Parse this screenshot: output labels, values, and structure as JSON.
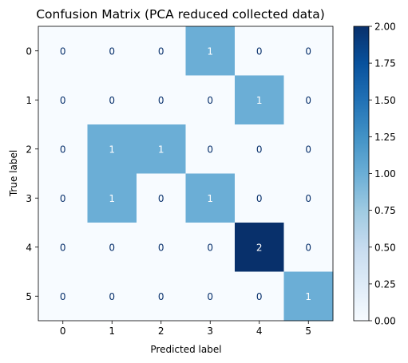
{
  "chart_data": {
    "type": "heatmap",
    "title": "Confusion Matrix (PCA reduced collected data)",
    "xlabel": "Predicted label",
    "ylabel": "True label",
    "x_categories": [
      "0",
      "1",
      "2",
      "3",
      "4",
      "5"
    ],
    "y_categories": [
      "0",
      "1",
      "2",
      "3",
      "4",
      "5"
    ],
    "matrix": [
      [
        0,
        0,
        0,
        1,
        0,
        0
      ],
      [
        0,
        0,
        0,
        0,
        1,
        0
      ],
      [
        0,
        1,
        1,
        0,
        0,
        0
      ],
      [
        0,
        1,
        0,
        1,
        0,
        0
      ],
      [
        0,
        0,
        0,
        0,
        2,
        0
      ],
      [
        0,
        0,
        0,
        0,
        0,
        1
      ]
    ],
    "colorbar": {
      "range": [
        0,
        2
      ],
      "ticks": [
        "0.00",
        "0.25",
        "0.50",
        "0.75",
        "1.00",
        "1.25",
        "1.50",
        "1.75",
        "2.00"
      ],
      "colormap": "Blues"
    },
    "colors": {
      "low": "#f7fbff",
      "mid": "#6baed6",
      "high": "#08306b",
      "text_on_light": "#08306b",
      "text_on_dark": "#ffffff"
    }
  }
}
